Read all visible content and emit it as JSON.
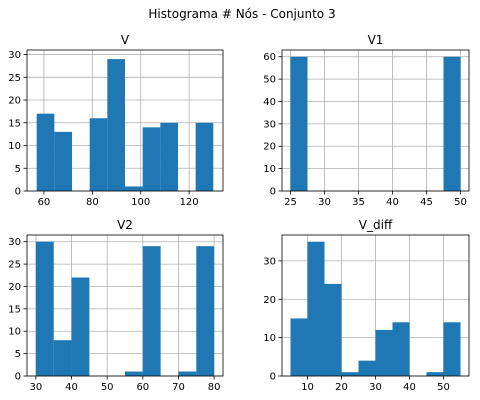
{
  "figure": {
    "suptitle": "Histograma # Nós - Conjunto 3"
  },
  "chart_data": [
    {
      "type": "bar",
      "title": "V",
      "xlim": [
        53,
        134
      ],
      "ylim": [
        0,
        31
      ],
      "xticks": [
        60,
        80,
        100,
        120
      ],
      "yticks": [
        0,
        5,
        10,
        15,
        20,
        25,
        30
      ],
      "grid": true,
      "bar_color": "#1f77b4",
      "bins": [
        {
          "x0": 57,
          "x1": 64.3,
          "value": 17
        },
        {
          "x0": 64.3,
          "x1": 71.6,
          "value": 13
        },
        {
          "x0": 71.6,
          "x1": 78.9,
          "value": 0
        },
        {
          "x0": 78.9,
          "x1": 86.2,
          "value": 16
        },
        {
          "x0": 86.2,
          "x1": 93.5,
          "value": 29
        },
        {
          "x0": 93.5,
          "x1": 100.8,
          "value": 1
        },
        {
          "x0": 100.8,
          "x1": 108.1,
          "value": 14
        },
        {
          "x0": 108.1,
          "x1": 115.4,
          "value": 15
        },
        {
          "x0": 115.4,
          "x1": 122.7,
          "value": 0
        },
        {
          "x0": 122.7,
          "x1": 130,
          "value": 15
        }
      ]
    },
    {
      "type": "bar",
      "title": "V1",
      "xlim": [
        23.75,
        51.25
      ],
      "ylim": [
        0,
        63
      ],
      "xticks": [
        25,
        30,
        35,
        40,
        45,
        50
      ],
      "yticks": [
        0,
        10,
        20,
        30,
        40,
        50,
        60
      ],
      "grid": true,
      "bar_color": "#1f77b4",
      "bins": [
        {
          "x0": 25,
          "x1": 27.5,
          "value": 60
        },
        {
          "x0": 47.5,
          "x1": 50,
          "value": 60
        }
      ]
    },
    {
      "type": "bar",
      "title": "V2",
      "xlim": [
        27.5,
        82.5
      ],
      "ylim": [
        0,
        31.5
      ],
      "xticks": [
        30,
        40,
        50,
        60,
        70,
        80
      ],
      "yticks": [
        0,
        5,
        10,
        15,
        20,
        25,
        30
      ],
      "grid": true,
      "bar_color": "#1f77b4",
      "bins": [
        {
          "x0": 30,
          "x1": 35,
          "value": 30
        },
        {
          "x0": 35,
          "x1": 40,
          "value": 8
        },
        {
          "x0": 40,
          "x1": 45,
          "value": 22
        },
        {
          "x0": 45,
          "x1": 50,
          "value": 0
        },
        {
          "x0": 50,
          "x1": 55,
          "value": 0
        },
        {
          "x0": 55,
          "x1": 60,
          "value": 1
        },
        {
          "x0": 60,
          "x1": 65,
          "value": 29
        },
        {
          "x0": 65,
          "x1": 70,
          "value": 0
        },
        {
          "x0": 70,
          "x1": 75,
          "value": 1
        },
        {
          "x0": 75,
          "x1": 80,
          "value": 29
        }
      ]
    },
    {
      "type": "bar",
      "title": "V_diff",
      "xlim": [
        2.5,
        57.5
      ],
      "ylim": [
        0,
        36.75
      ],
      "xticks": [
        10,
        20,
        30,
        40,
        50
      ],
      "yticks": [
        0,
        10,
        20,
        30
      ],
      "grid": true,
      "bar_color": "#1f77b4",
      "bins": [
        {
          "x0": 5,
          "x1": 10,
          "value": 15
        },
        {
          "x0": 10,
          "x1": 15,
          "value": 35
        },
        {
          "x0": 15,
          "x1": 20,
          "value": 24
        },
        {
          "x0": 20,
          "x1": 25,
          "value": 1
        },
        {
          "x0": 25,
          "x1": 30,
          "value": 4
        },
        {
          "x0": 30,
          "x1": 35,
          "value": 12
        },
        {
          "x0": 35,
          "x1": 40,
          "value": 14
        },
        {
          "x0": 40,
          "x1": 45,
          "value": 0
        },
        {
          "x0": 45,
          "x1": 50,
          "value": 1
        },
        {
          "x0": 50,
          "x1": 55,
          "value": 14
        }
      ]
    }
  ]
}
